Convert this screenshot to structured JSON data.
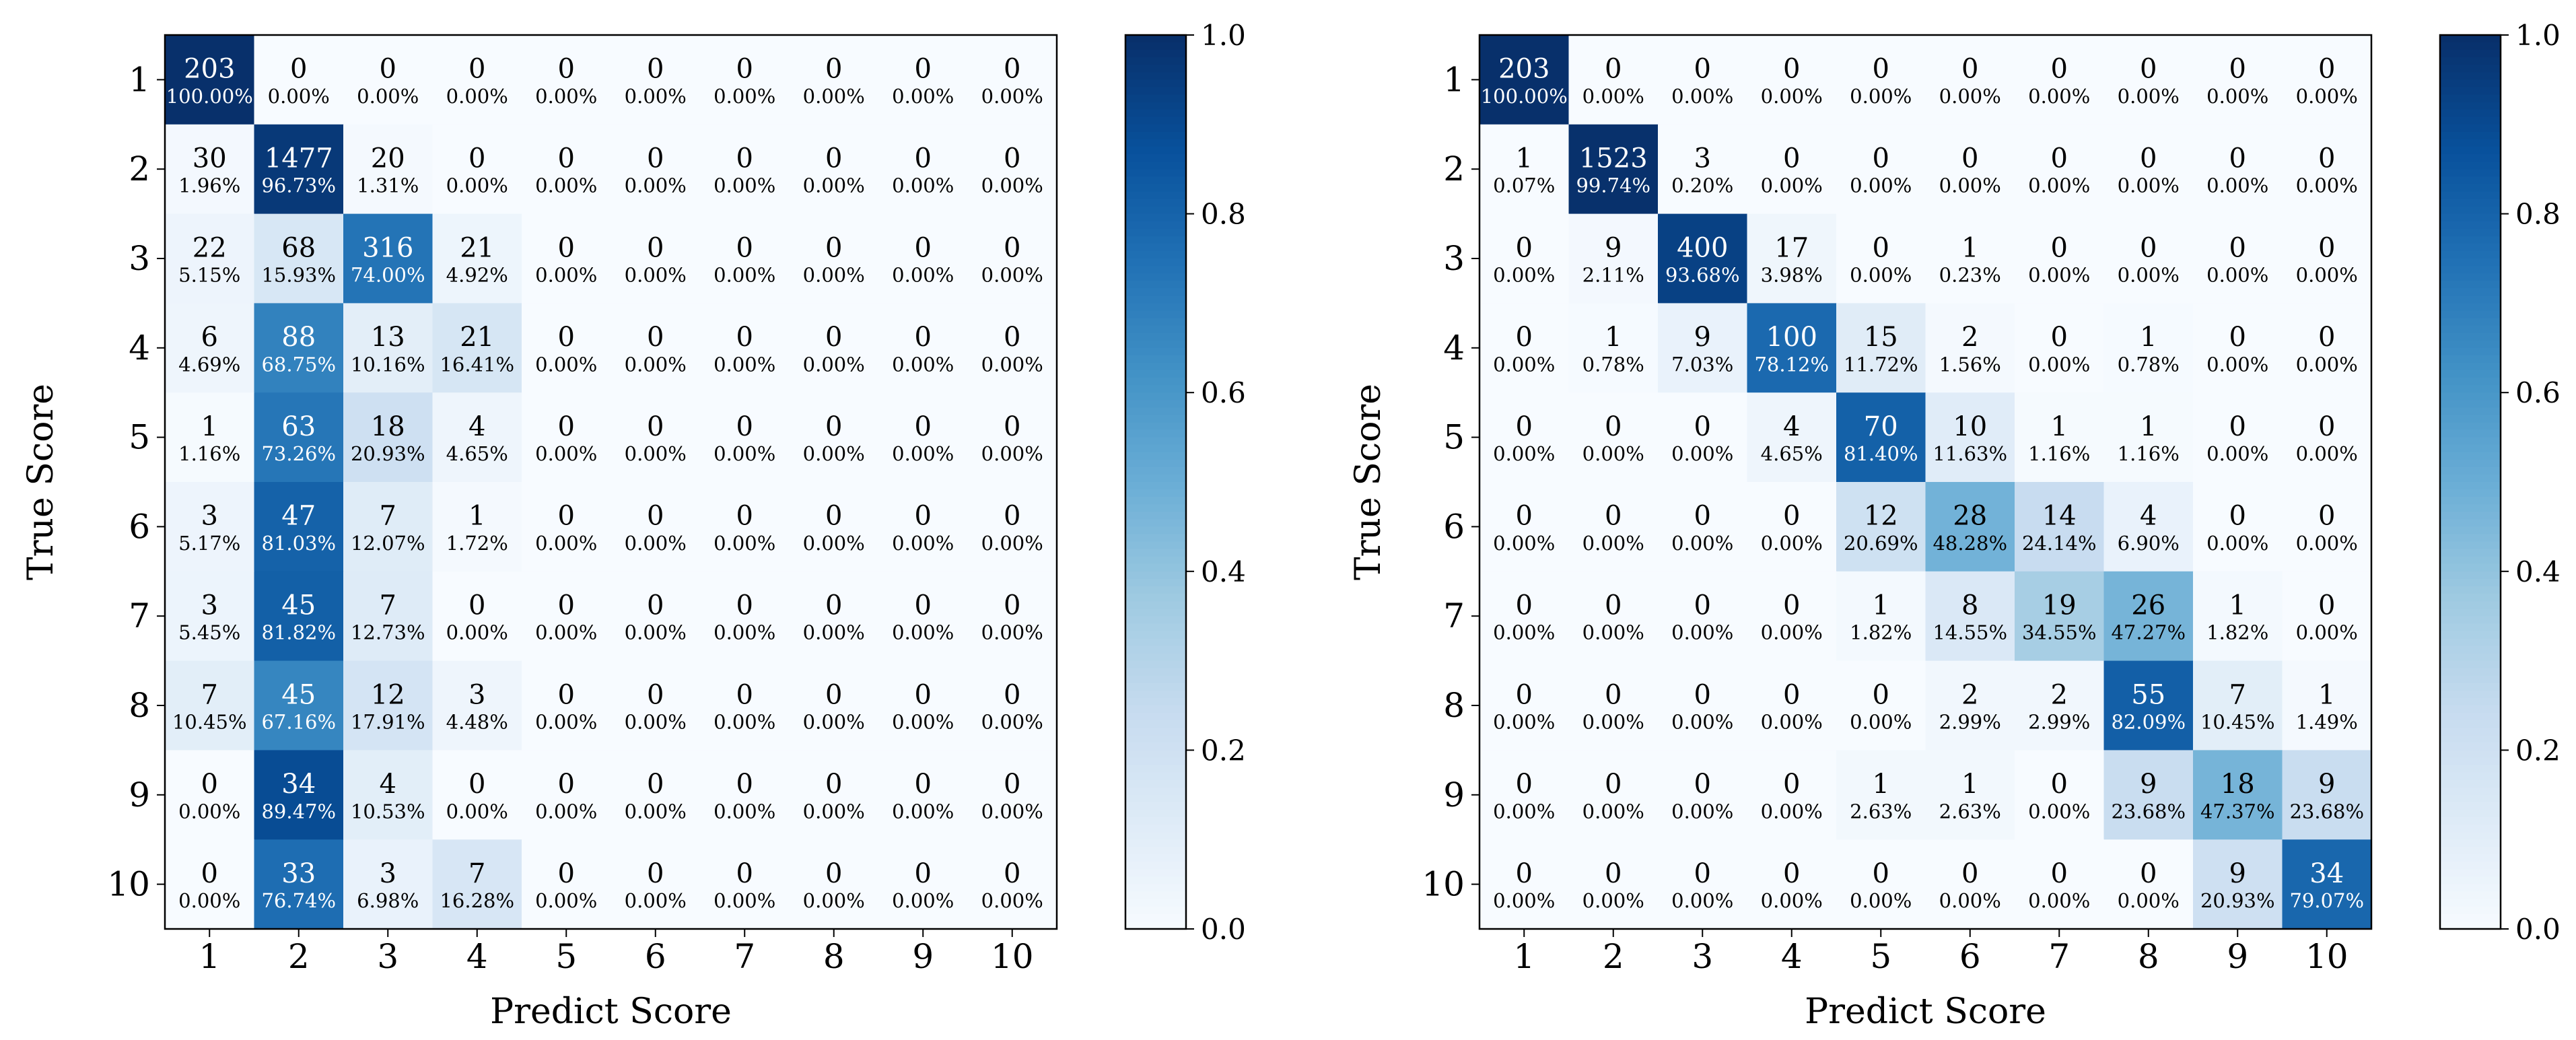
{
  "chart_data": [
    {
      "type": "heatmap",
      "xlabel": "Predict Score",
      "ylabel": "True Score",
      "x_tick_labels": [
        "1",
        "2",
        "3",
        "4",
        "5",
        "6",
        "7",
        "8",
        "9",
        "10"
      ],
      "y_tick_labels": [
        "1",
        "2",
        "3",
        "4",
        "5",
        "6",
        "7",
        "8",
        "9",
        "10"
      ],
      "colorbar": {
        "range": [
          0,
          1
        ],
        "ticks": [
          "0.0",
          "0.2",
          "0.4",
          "0.6",
          "0.8",
          "1.0"
        ],
        "colormap": "Blues"
      },
      "counts": [
        [
          203,
          0,
          0,
          0,
          0,
          0,
          0,
          0,
          0,
          0
        ],
        [
          30,
          1477,
          20,
          0,
          0,
          0,
          0,
          0,
          0,
          0
        ],
        [
          22,
          68,
          316,
          21,
          0,
          0,
          0,
          0,
          0,
          0
        ],
        [
          6,
          88,
          13,
          21,
          0,
          0,
          0,
          0,
          0,
          0
        ],
        [
          1,
          63,
          18,
          4,
          0,
          0,
          0,
          0,
          0,
          0
        ],
        [
          3,
          47,
          7,
          1,
          0,
          0,
          0,
          0,
          0,
          0
        ],
        [
          3,
          45,
          7,
          0,
          0,
          0,
          0,
          0,
          0,
          0
        ],
        [
          7,
          45,
          12,
          3,
          0,
          0,
          0,
          0,
          0,
          0
        ],
        [
          0,
          34,
          4,
          0,
          0,
          0,
          0,
          0,
          0,
          0
        ],
        [
          0,
          33,
          3,
          7,
          0,
          0,
          0,
          0,
          0,
          0
        ]
      ],
      "percentages": [
        [
          "100.00%",
          "0.00%",
          "0.00%",
          "0.00%",
          "0.00%",
          "0.00%",
          "0.00%",
          "0.00%",
          "0.00%",
          "0.00%"
        ],
        [
          "1.96%",
          "96.73%",
          "1.31%",
          "0.00%",
          "0.00%",
          "0.00%",
          "0.00%",
          "0.00%",
          "0.00%",
          "0.00%"
        ],
        [
          "5.15%",
          "15.93%",
          "74.00%",
          "4.92%",
          "0.00%",
          "0.00%",
          "0.00%",
          "0.00%",
          "0.00%",
          "0.00%"
        ],
        [
          "4.69%",
          "68.75%",
          "10.16%",
          "16.41%",
          "0.00%",
          "0.00%",
          "0.00%",
          "0.00%",
          "0.00%",
          "0.00%"
        ],
        [
          "1.16%",
          "73.26%",
          "20.93%",
          "4.65%",
          "0.00%",
          "0.00%",
          "0.00%",
          "0.00%",
          "0.00%",
          "0.00%"
        ],
        [
          "5.17%",
          "81.03%",
          "12.07%",
          "1.72%",
          "0.00%",
          "0.00%",
          "0.00%",
          "0.00%",
          "0.00%",
          "0.00%"
        ],
        [
          "5.45%",
          "81.82%",
          "12.73%",
          "0.00%",
          "0.00%",
          "0.00%",
          "0.00%",
          "0.00%",
          "0.00%",
          "0.00%"
        ],
        [
          "10.45%",
          "67.16%",
          "17.91%",
          "4.48%",
          "0.00%",
          "0.00%",
          "0.00%",
          "0.00%",
          "0.00%",
          "0.00%"
        ],
        [
          "0.00%",
          "89.47%",
          "10.53%",
          "0.00%",
          "0.00%",
          "0.00%",
          "0.00%",
          "0.00%",
          "0.00%",
          "0.00%"
        ],
        [
          "0.00%",
          "76.74%",
          "6.98%",
          "16.28%",
          "0.00%",
          "0.00%",
          "0.00%",
          "0.00%",
          "0.00%",
          "0.00%"
        ]
      ]
    },
    {
      "type": "heatmap",
      "xlabel": "Predict Score",
      "ylabel": "True Score",
      "x_tick_labels": [
        "1",
        "2",
        "3",
        "4",
        "5",
        "6",
        "7",
        "8",
        "9",
        "10"
      ],
      "y_tick_labels": [
        "1",
        "2",
        "3",
        "4",
        "5",
        "6",
        "7",
        "8",
        "9",
        "10"
      ],
      "colorbar": {
        "range": [
          0,
          1
        ],
        "ticks": [
          "0.0",
          "0.2",
          "0.4",
          "0.6",
          "0.8",
          "1.0"
        ],
        "colormap": "Blues"
      },
      "counts": [
        [
          203,
          0,
          0,
          0,
          0,
          0,
          0,
          0,
          0,
          0
        ],
        [
          1,
          1523,
          3,
          0,
          0,
          0,
          0,
          0,
          0,
          0
        ],
        [
          0,
          9,
          400,
          17,
          0,
          1,
          0,
          0,
          0,
          0
        ],
        [
          0,
          1,
          9,
          100,
          15,
          2,
          0,
          1,
          0,
          0
        ],
        [
          0,
          0,
          0,
          4,
          70,
          10,
          1,
          1,
          0,
          0
        ],
        [
          0,
          0,
          0,
          0,
          12,
          28,
          14,
          4,
          0,
          0
        ],
        [
          0,
          0,
          0,
          0,
          1,
          8,
          19,
          26,
          1,
          0
        ],
        [
          0,
          0,
          0,
          0,
          0,
          2,
          2,
          55,
          7,
          1
        ],
        [
          0,
          0,
          0,
          0,
          1,
          1,
          0,
          9,
          18,
          9
        ],
        [
          0,
          0,
          0,
          0,
          0,
          0,
          0,
          0,
          9,
          34
        ]
      ],
      "percentages": [
        [
          "100.00%",
          "0.00%",
          "0.00%",
          "0.00%",
          "0.00%",
          "0.00%",
          "0.00%",
          "0.00%",
          "0.00%",
          "0.00%"
        ],
        [
          "0.07%",
          "99.74%",
          "0.20%",
          "0.00%",
          "0.00%",
          "0.00%",
          "0.00%",
          "0.00%",
          "0.00%",
          "0.00%"
        ],
        [
          "0.00%",
          "2.11%",
          "93.68%",
          "3.98%",
          "0.00%",
          "0.23%",
          "0.00%",
          "0.00%",
          "0.00%",
          "0.00%"
        ],
        [
          "0.00%",
          "0.78%",
          "7.03%",
          "78.12%",
          "11.72%",
          "1.56%",
          "0.00%",
          "0.78%",
          "0.00%",
          "0.00%"
        ],
        [
          "0.00%",
          "0.00%",
          "0.00%",
          "4.65%",
          "81.40%",
          "11.63%",
          "1.16%",
          "1.16%",
          "0.00%",
          "0.00%"
        ],
        [
          "0.00%",
          "0.00%",
          "0.00%",
          "0.00%",
          "20.69%",
          "48.28%",
          "24.14%",
          "6.90%",
          "0.00%",
          "0.00%"
        ],
        [
          "0.00%",
          "0.00%",
          "0.00%",
          "0.00%",
          "1.82%",
          "14.55%",
          "34.55%",
          "47.27%",
          "1.82%",
          "0.00%"
        ],
        [
          "0.00%",
          "0.00%",
          "0.00%",
          "0.00%",
          "0.00%",
          "2.99%",
          "2.99%",
          "82.09%",
          "10.45%",
          "1.49%"
        ],
        [
          "0.00%",
          "0.00%",
          "0.00%",
          "0.00%",
          "2.63%",
          "2.63%",
          "0.00%",
          "23.68%",
          "47.37%",
          "23.68%"
        ],
        [
          "0.00%",
          "0.00%",
          "0.00%",
          "0.00%",
          "0.00%",
          "0.00%",
          "0.00%",
          "0.00%",
          "20.93%",
          "79.07%"
        ]
      ]
    }
  ]
}
